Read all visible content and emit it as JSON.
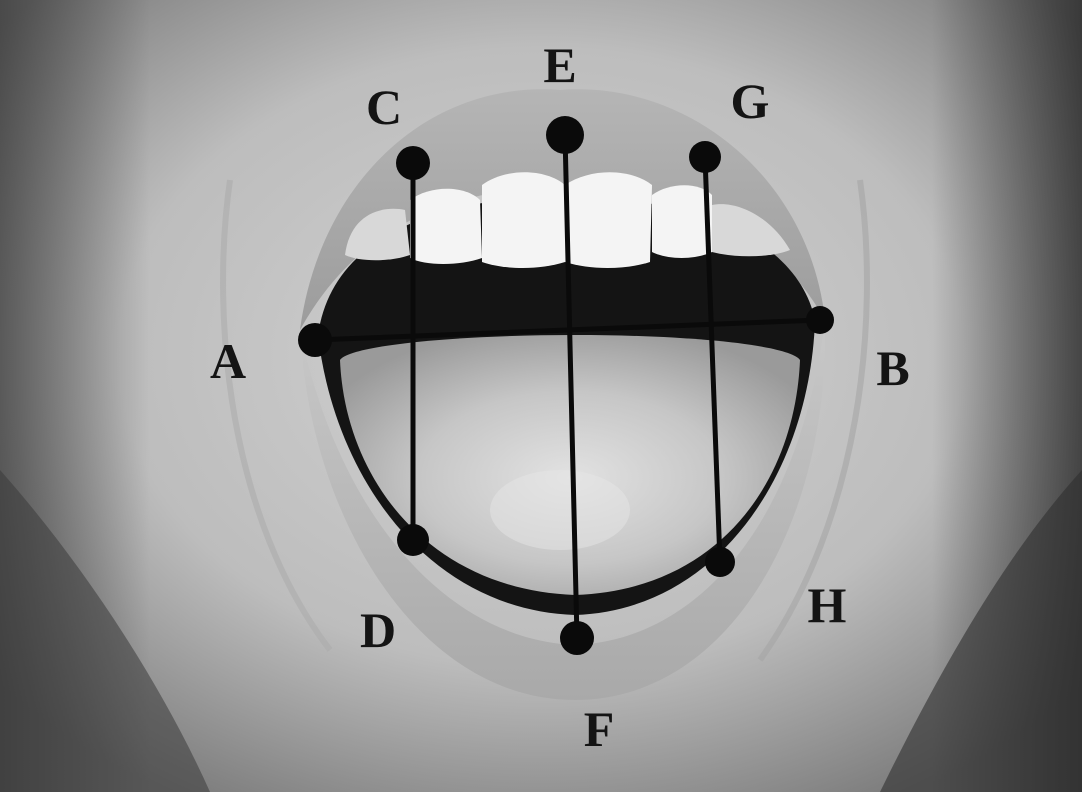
{
  "photo": {
    "subject": "open-mouth-photograph",
    "tone": "grayscale",
    "colors": {
      "background_skin": "#c4c4c4",
      "lip": "#a8a8a8",
      "mouth_cavity": "#141414",
      "teeth": "#f4f4f4",
      "tongue": "#c9c9c9",
      "marker": "#0a0a0a"
    }
  },
  "landmarks": {
    "A": "A",
    "B": "B",
    "C": "C",
    "D": "D",
    "E": "E",
    "F": "F",
    "G": "G",
    "H": "H"
  },
  "measurements": [
    {
      "from": "A",
      "to": "B"
    },
    {
      "from": "C",
      "to": "D"
    },
    {
      "from": "E",
      "to": "F"
    },
    {
      "from": "G",
      "to": "H"
    }
  ]
}
